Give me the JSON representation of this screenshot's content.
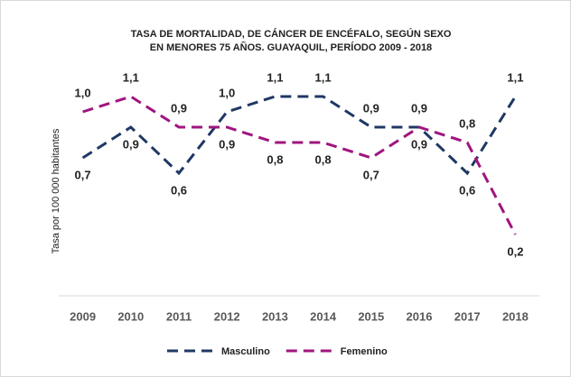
{
  "chart_data": {
    "type": "line",
    "title": [
      "TASA DE MORTALIDAD, DE CÁNCER DE ENCÉFALO, SEGÚN SEXO",
      "EN MENORES 75 AÑOS. GUAYAQUIL, PERÍODO 2009 - 2018"
    ],
    "y_label": "Tasa por 100 000 habitantes",
    "categories": [
      "2009",
      "2010",
      "2011",
      "2012",
      "2013",
      "2014",
      "2015",
      "2016",
      "2017",
      "2018"
    ],
    "ylim": [
      -0.2,
      1.2
    ],
    "series": [
      {
        "name": "Masculino",
        "color": "#1f3864",
        "values": [
          0.7,
          0.9,
          0.6,
          1.0,
          1.1,
          1.1,
          0.9,
          0.9,
          0.6,
          1.1
        ],
        "value_labels": [
          "0,7",
          "0,9",
          "0,6",
          "1,0",
          "1,1",
          "1,1",
          "0,9",
          "0,9",
          "0,6",
          "1,1"
        ]
      },
      {
        "name": "Femenino",
        "color": "#a0157f",
        "values": [
          1.0,
          1.1,
          0.9,
          0.9,
          0.8,
          0.8,
          0.7,
          0.9,
          0.8,
          0.2
        ],
        "value_labels": [
          "1,0",
          "1,1",
          "0,9",
          "0,9",
          "0,8",
          "0,8",
          "0,7",
          "0,9",
          "0,8",
          "0,2"
        ]
      }
    ],
    "legend": "bottom",
    "dashed": true
  }
}
